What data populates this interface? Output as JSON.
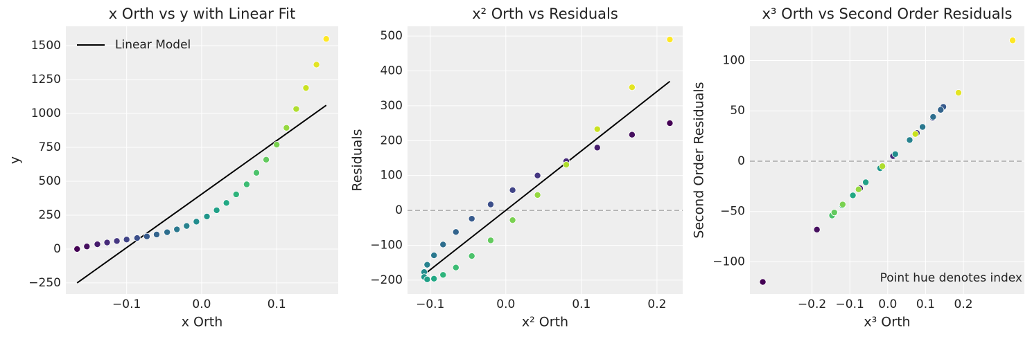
{
  "chart_data": [
    {
      "type": "scatter",
      "title": "x Orth vs y with Linear Fit",
      "xlabel": "x Orth",
      "ylabel": "y",
      "xlim": [
        -0.181,
        0.182
      ],
      "ylim": [
        -332,
        1643
      ],
      "xticks": [
        {
          "value": -0.1,
          "label": "−0.1"
        },
        {
          "value": 0,
          "label": "0.0"
        },
        {
          "value": 0.1,
          "label": "0.1"
        }
      ],
      "yticks": [
        {
          "value": -250,
          "label": "−250"
        },
        0,
        250,
        500,
        750,
        1000,
        1250,
        1500
      ],
      "grid": true,
      "legend": "upper left",
      "x": [
        -0.166,
        -0.153,
        -0.139,
        -0.126,
        -0.113,
        -0.1,
        -0.086,
        -0.073,
        -0.06,
        -0.046,
        -0.033,
        -0.02,
        -0.007,
        0.007,
        0.02,
        0.033,
        0.046,
        0.06,
        0.073,
        0.086,
        0.1,
        0.113,
        0.126,
        0.139,
        0.153,
        0.166
      ],
      "values": [
        0,
        19,
        35,
        48,
        59,
        70,
        81,
        93,
        107,
        124,
        145,
        170,
        202,
        240,
        286,
        340,
        403,
        477,
        562,
        659,
        770,
        894,
        1033,
        1188,
        1360,
        1550
      ],
      "colors": [
        "#440154",
        "#46105f",
        "#471d6d",
        "#472b7a",
        "#453781",
        "#414487",
        "#3c4f8a",
        "#375a8c",
        "#33648d",
        "#2e6e8e",
        "#2a788e",
        "#27828e",
        "#228c8d",
        "#20968a",
        "#20a087",
        "#22a884",
        "#2eb37b",
        "#3dbc74",
        "#4cc26b",
        "#63ca5e",
        "#7ad151",
        "#95d840",
        "#afdd2f",
        "#c9e120",
        "#e3e423",
        "#fde725"
      ],
      "lines": [
        {
          "name": "Linear Model",
          "color": "#000000",
          "x": [
            -0.166,
            0.166
          ],
          "y": [
            -250,
            1060
          ]
        }
      ]
    },
    {
      "type": "scatter",
      "title": "x² Orth vs Residuals",
      "xlabel": "x² Orth",
      "ylabel": "Residuals",
      "xlim": [
        -0.13,
        0.234
      ],
      "ylim": [
        -240,
        528
      ],
      "xticks": [
        {
          "value": -0.1,
          "label": "−0.1"
        },
        {
          "value": 0,
          "label": "0.0"
        },
        {
          "value": 0.1,
          "label": "0.1"
        },
        {
          "value": 0.2,
          "label": "0.2"
        }
      ],
      "yticks": [
        {
          "value": -200,
          "label": "−200"
        },
        {
          "value": -100,
          "label": "−100"
        },
        0,
        100,
        200,
        300,
        400,
        500
      ],
      "grid": true,
      "hline": {
        "value": 0,
        "color": "#888888"
      },
      "x": [
        0.217,
        0.167,
        0.121,
        0.08,
        0.042,
        0.009,
        -0.02,
        -0.045,
        -0.066,
        -0.083,
        -0.095,
        -0.104,
        -0.108,
        -0.108,
        -0.104,
        -0.095,
        -0.083,
        -0.066,
        -0.045,
        -0.02,
        0.009,
        0.042,
        0.08,
        0.121,
        0.167,
        0.217
      ],
      "values": [
        250,
        217,
        180,
        141,
        100,
        58,
        17,
        -24,
        -62,
        -98,
        -129,
        -156,
        -177,
        -191,
        -198,
        -196,
        -185,
        -164,
        -131,
        -86,
        -28,
        44,
        131,
        233,
        353,
        490
      ],
      "colors": [
        "#440154",
        "#46105f",
        "#471d6d",
        "#472b7a",
        "#453781",
        "#414487",
        "#3c4f8a",
        "#375a8c",
        "#33648d",
        "#2e6e8e",
        "#2a788e",
        "#27828e",
        "#228c8d",
        "#20968a",
        "#20a087",
        "#22a884",
        "#2eb37b",
        "#3dbc74",
        "#4cc26b",
        "#63ca5e",
        "#7ad151",
        "#95d840",
        "#afdd2f",
        "#c9e120",
        "#e3e423",
        "#fde725"
      ],
      "lines": [
        {
          "color": "#000000",
          "x": [
            -0.108,
            0.217
          ],
          "y": [
            -184,
            370
          ]
        }
      ]
    },
    {
      "type": "scatter",
      "title": "x³ Orth vs Second Order Residuals",
      "xlabel": "x³ Orth",
      "ylabel": "Second Order Residuals",
      "xlim": [
        -0.364,
        0.361
      ],
      "ylim": [
        -132,
        134
      ],
      "xticks": [
        {
          "value": -0.2,
          "label": "−0.2"
        },
        {
          "value": -0.1,
          "label": "−0.1"
        },
        {
          "value": 0,
          "label": "0.0"
        },
        {
          "value": 0.1,
          "label": "0.1"
        },
        {
          "value": 0.2,
          "label": "0.2"
        }
      ],
      "yticks": [
        {
          "value": -100,
          "label": "−100"
        },
        {
          "value": -50,
          "label": "−50"
        },
        0,
        50,
        100
      ],
      "grid": true,
      "hline": {
        "value": 0,
        "color": "#888888"
      },
      "annotation": "Point hue denotes index",
      "x": [
        -0.33,
        -0.187,
        -0.073,
        0.014,
        0.077,
        0.119,
        0.141,
        0.147,
        0.14,
        0.12,
        0.092,
        0.058,
        0.02,
        -0.02,
        -0.058,
        -0.092,
        -0.12,
        -0.14,
        -0.147,
        -0.141,
        -0.119,
        -0.077,
        -0.014,
        0.073,
        0.187,
        0.33
      ],
      "values": [
        -120,
        -68,
        -27,
        5,
        28,
        43,
        51,
        54,
        51,
        44,
        34,
        21,
        7,
        -7,
        -21,
        -34,
        -44,
        -51,
        -54,
        -51,
        -43,
        -28,
        -5,
        27,
        68,
        120
      ],
      "colors": [
        "#440154",
        "#46105f",
        "#471d6d",
        "#472b7a",
        "#453781",
        "#414487",
        "#3c4f8a",
        "#375a8c",
        "#33648d",
        "#2e6e8e",
        "#2a788e",
        "#27828e",
        "#228c8d",
        "#20968a",
        "#20a087",
        "#22a884",
        "#2eb37b",
        "#3dbc74",
        "#4cc26b",
        "#63ca5e",
        "#7ad151",
        "#95d840",
        "#afdd2f",
        "#c9e120",
        "#e3e423",
        "#fde725"
      ]
    }
  ]
}
